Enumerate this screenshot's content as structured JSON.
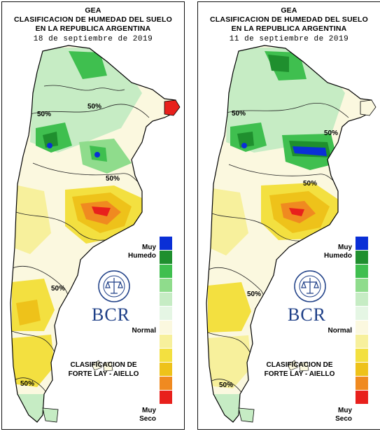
{
  "colors": {
    "legend_scale": [
      "#0a2fd6",
      "#1f8f2e",
      "#3fbf4f",
      "#8fdc8c",
      "#c6ecc4",
      "#e5f6e4",
      "#fbf8df",
      "#f7f09c",
      "#f3e040",
      "#eec21a",
      "#f08a20",
      "#e8201c"
    ]
  },
  "maps": [
    {
      "title_line1": "GEA",
      "title_line2": "CLASIFICACION DE HUMEDAD DEL SUELO",
      "title_line3": "EN LA REPUBLICA ARGENTINA",
      "date": "18 de septiembre de 2019",
      "contour_labels": [
        "50%",
        "50%",
        "50%",
        "50%",
        "50%"
      ],
      "legend_top": "Muy\nHumedo",
      "legend_mid": "Normal",
      "legend_bottom": "Muy\nSeco",
      "logo_text": "BCR",
      "seal_text": "BOLSA DE COMERCIO DE ROSARIO",
      "classification": "CLASIFICACION DE\nFORTE LAY - AIELLO"
    },
    {
      "title_line1": "GEA",
      "title_line2": "CLASIFICACION DE HUMEDAD DEL SUELO",
      "title_line3": "EN LA REPUBLICA ARGENTINA",
      "date": "11 de septiembre de 2019",
      "contour_labels": [
        "50%",
        "50%",
        "50%",
        "50%",
        "50%"
      ],
      "legend_top": "Muy\nHumedo",
      "legend_mid": "Normal",
      "legend_bottom": "Muy\nSeco",
      "logo_text": "BCR",
      "seal_text": "BOLSA DE COMERCIO DE ROSARIO",
      "classification": "CLASIFICACION DE\nFORTE LAY - AIELLO"
    }
  ]
}
